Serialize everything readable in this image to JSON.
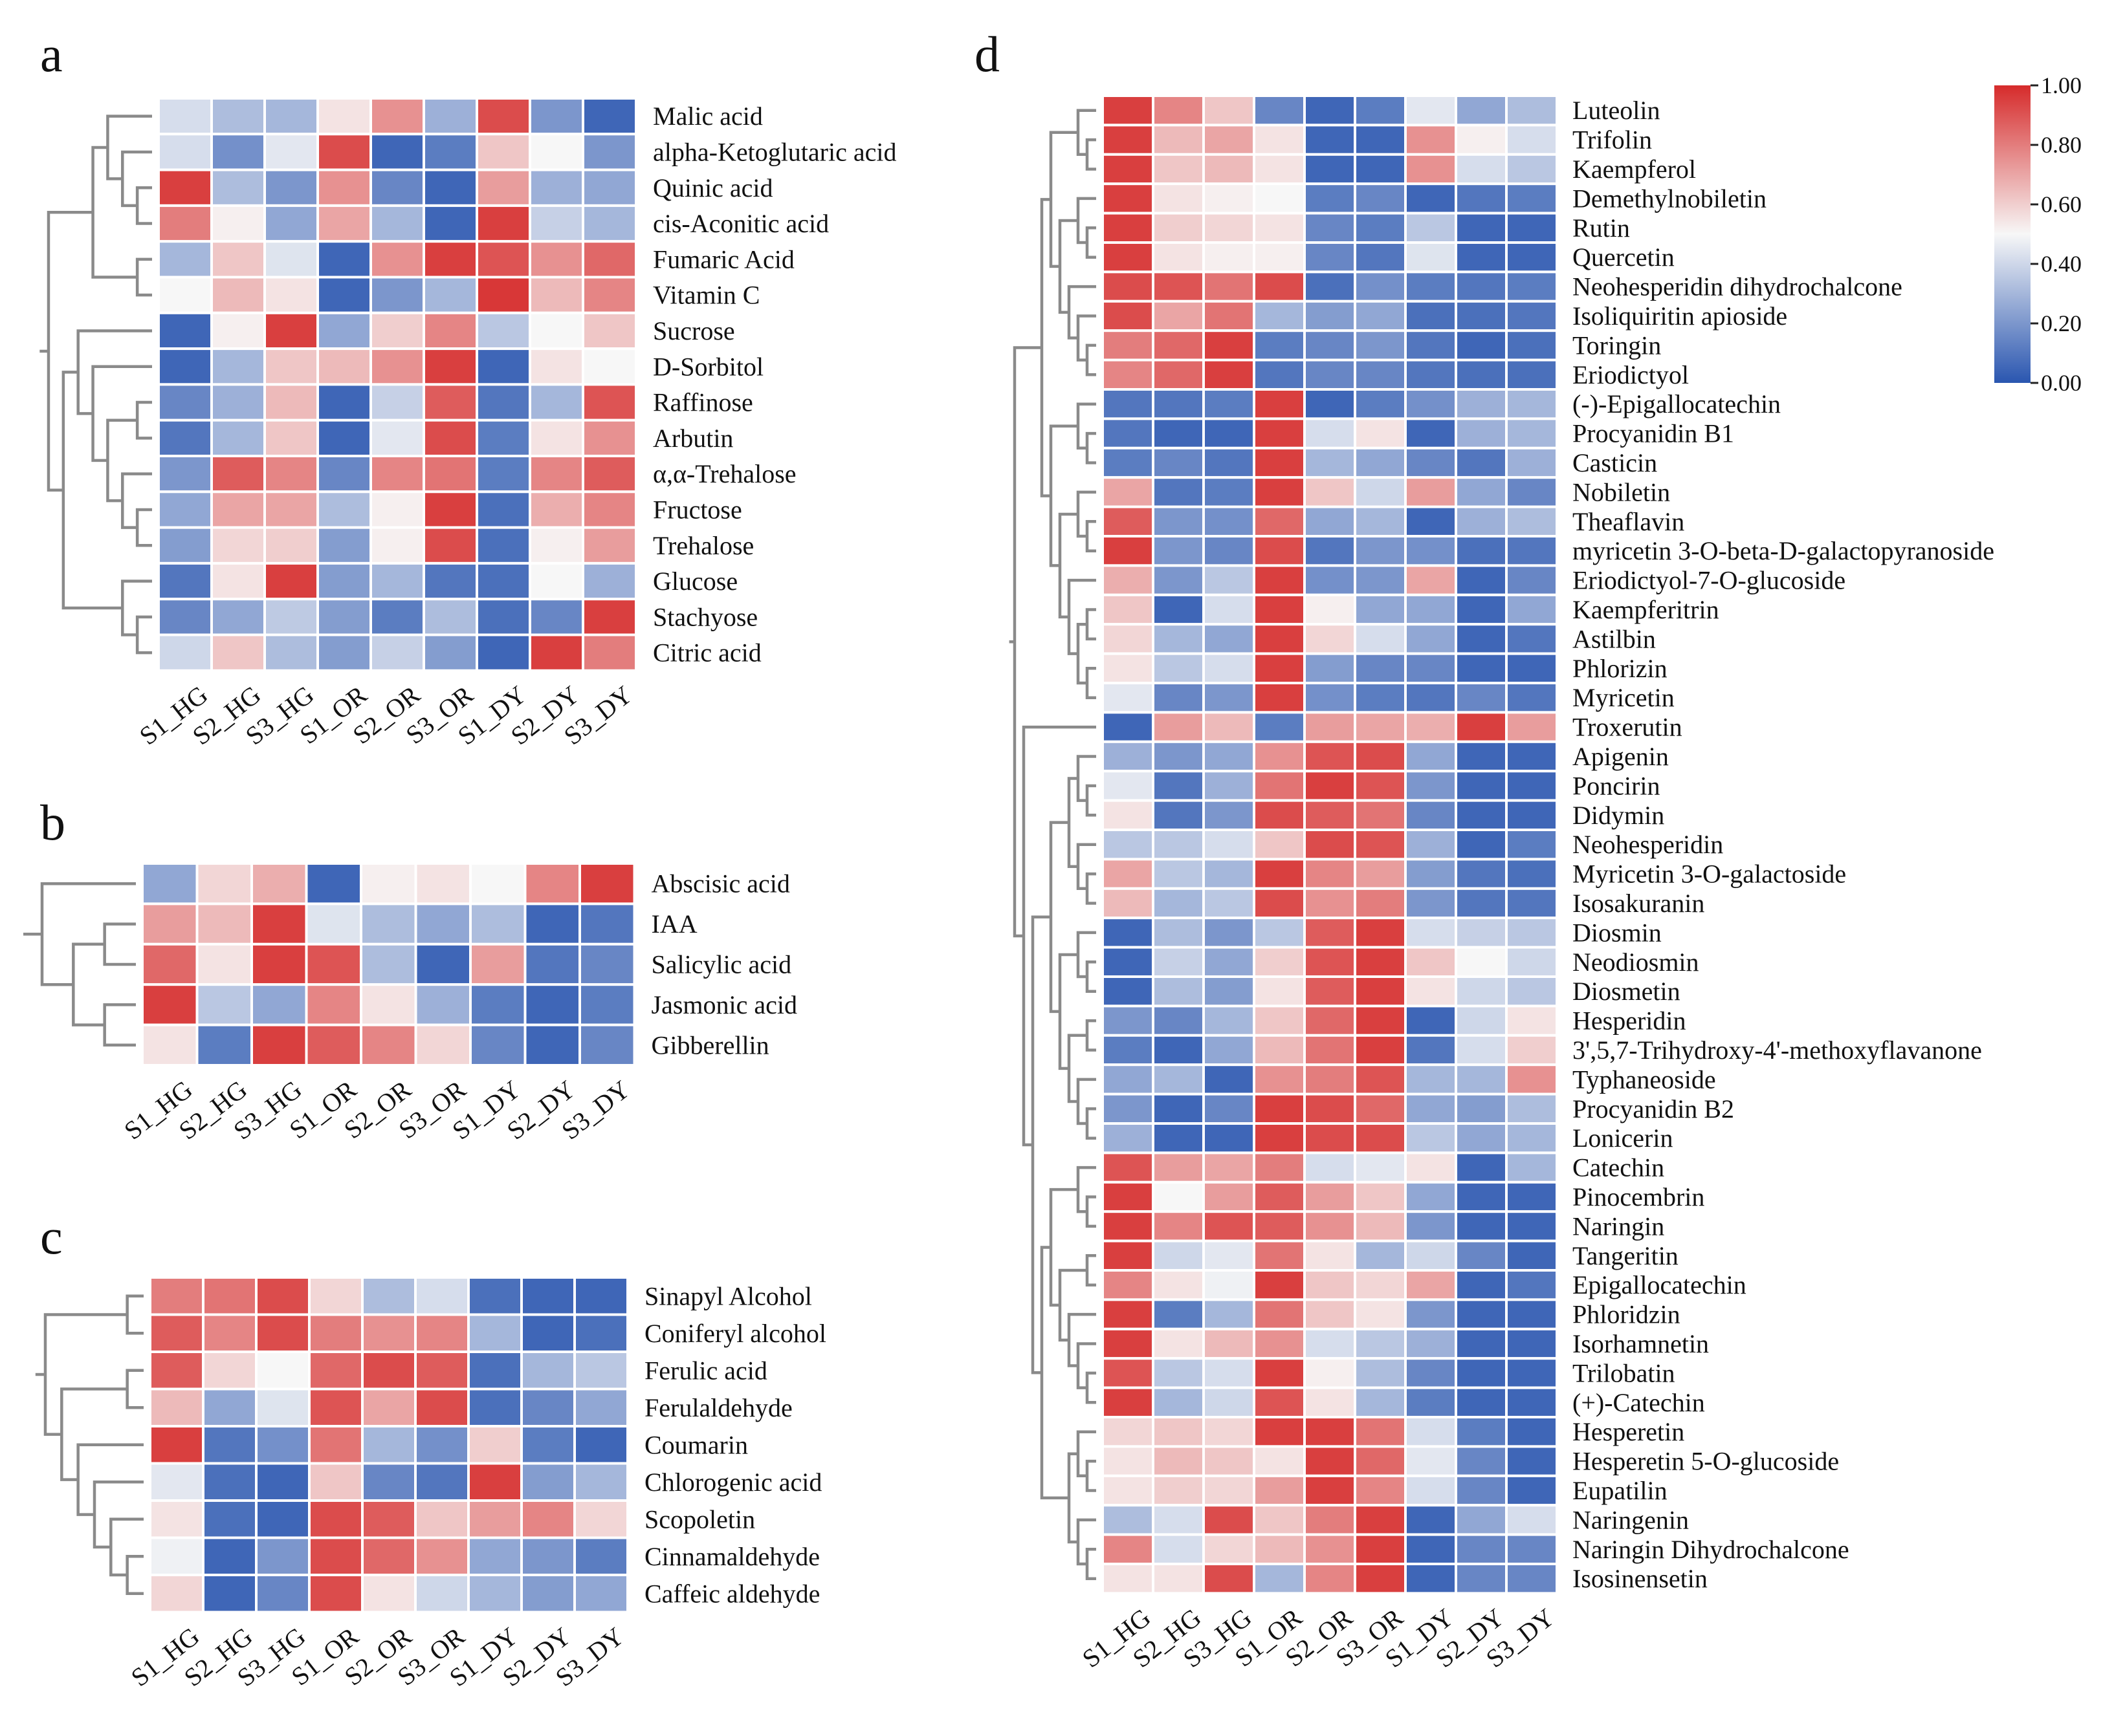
{
  "figure": {
    "panels": [
      "a",
      "b",
      "c",
      "d"
    ]
  },
  "chart_data": [
    {
      "type": "heatmap",
      "panel": "a",
      "title": "",
      "x": [
        "S1_HG",
        "S2_HG",
        "S3_HG",
        "S1_OR",
        "S2_OR",
        "S3_OR",
        "S1_DY",
        "S2_DY",
        "S3_DY"
      ],
      "y": [
        "Malic acid",
        "alpha-Ketoglutaric acid",
        "Quinic acid",
        "cis-Aconitic acid",
        "Fumaric Acid",
        "Vitamin C",
        "Sucrose",
        "D-Sorbitol",
        "Raffinose",
        "Arbutin",
        "α,α-Trehalose",
        "Fructose",
        "Trehalose",
        "Glucose",
        "Stachyose",
        "Citric acid"
      ],
      "values": [
        [
          0.42,
          0.32,
          0.3,
          0.55,
          0.75,
          0.28,
          0.92,
          0.2,
          0.05
        ],
        [
          0.42,
          0.18,
          0.45,
          0.92,
          0.05,
          0.12,
          0.62,
          0.5,
          0.2
        ],
        [
          0.95,
          0.32,
          0.2,
          0.75,
          0.15,
          0.05,
          0.72,
          0.28,
          0.25
        ],
        [
          0.8,
          0.52,
          0.25,
          0.7,
          0.3,
          0.05,
          0.95,
          0.38,
          0.3
        ],
        [
          0.3,
          0.62,
          0.44,
          0.05,
          0.75,
          0.95,
          0.9,
          0.75,
          0.85
        ],
        [
          0.5,
          0.65,
          0.55,
          0.05,
          0.2,
          0.3,
          0.97,
          0.65,
          0.78
        ],
        [
          0.05,
          0.52,
          0.95,
          0.25,
          0.6,
          0.78,
          0.35,
          0.5,
          0.62
        ],
        [
          0.05,
          0.3,
          0.62,
          0.65,
          0.75,
          0.95,
          0.05,
          0.55,
          0.5
        ],
        [
          0.15,
          0.28,
          0.65,
          0.05,
          0.38,
          0.88,
          0.1,
          0.3,
          0.9
        ],
        [
          0.1,
          0.3,
          0.62,
          0.05,
          0.45,
          0.92,
          0.12,
          0.55,
          0.75
        ],
        [
          0.2,
          0.88,
          0.78,
          0.15,
          0.78,
          0.82,
          0.12,
          0.78,
          0.88
        ],
        [
          0.25,
          0.7,
          0.7,
          0.32,
          0.52,
          0.95,
          0.08,
          0.68,
          0.78
        ],
        [
          0.22,
          0.58,
          0.6,
          0.22,
          0.52,
          0.92,
          0.08,
          0.52,
          0.72
        ],
        [
          0.1,
          0.55,
          0.95,
          0.22,
          0.3,
          0.1,
          0.08,
          0.5,
          0.28
        ],
        [
          0.15,
          0.25,
          0.36,
          0.22,
          0.12,
          0.32,
          0.08,
          0.15,
          0.95
        ],
        [
          0.4,
          0.62,
          0.32,
          0.22,
          0.38,
          0.22,
          0.05,
          0.95,
          0.8
        ]
      ],
      "color_range": [
        0,
        1
      ]
    },
    {
      "type": "heatmap",
      "panel": "b",
      "title": "",
      "x": [
        "S1_HG",
        "S2_HG",
        "S3_HG",
        "S1_OR",
        "S2_OR",
        "S3_OR",
        "S1_DY",
        "S2_DY",
        "S3_DY"
      ],
      "y": [
        "Abscisic acid",
        "IAA",
        "Salicylic acid",
        "Jasmonic acid",
        "Gibberellin"
      ],
      "values": [
        [
          0.25,
          0.58,
          0.68,
          0.05,
          0.52,
          0.55,
          0.5,
          0.78,
          0.95
        ],
        [
          0.72,
          0.65,
          0.95,
          0.44,
          0.32,
          0.25,
          0.32,
          0.05,
          0.1
        ],
        [
          0.85,
          0.55,
          0.95,
          0.9,
          0.32,
          0.05,
          0.72,
          0.1,
          0.15
        ],
        [
          0.95,
          0.35,
          0.25,
          0.78,
          0.55,
          0.28,
          0.12,
          0.05,
          0.12
        ],
        [
          0.55,
          0.12,
          0.95,
          0.88,
          0.78,
          0.58,
          0.15,
          0.05,
          0.15
        ]
      ],
      "color_range": [
        0,
        1
      ]
    },
    {
      "type": "heatmap",
      "panel": "c",
      "title": "",
      "x": [
        "S1_HG",
        "S2_HG",
        "S3_HG",
        "S1_OR",
        "S2_OR",
        "S3_OR",
        "S1_DY",
        "S2_DY",
        "S3_DY"
      ],
      "y": [
        "Sinapyl Alcohol",
        "Coniferyl alcohol",
        "Ferulic acid",
        "Ferulaldehyde",
        "Coumarin",
        "Chlorogenic acid",
        "Scopoletin",
        "Cinnamaldehyde",
        "Caffeic aldehyde"
      ],
      "values": [
        [
          0.8,
          0.82,
          0.92,
          0.58,
          0.32,
          0.42,
          0.08,
          0.05,
          0.05
        ],
        [
          0.88,
          0.78,
          0.92,
          0.8,
          0.75,
          0.78,
          0.3,
          0.05,
          0.08
        ],
        [
          0.88,
          0.58,
          0.5,
          0.85,
          0.92,
          0.88,
          0.08,
          0.3,
          0.35
        ],
        [
          0.65,
          0.25,
          0.44,
          0.9,
          0.7,
          0.92,
          0.08,
          0.15,
          0.25
        ],
        [
          0.95,
          0.1,
          0.18,
          0.82,
          0.3,
          0.18,
          0.6,
          0.12,
          0.05
        ],
        [
          0.45,
          0.08,
          0.05,
          0.62,
          0.15,
          0.1,
          0.95,
          0.22,
          0.3
        ],
        [
          0.55,
          0.08,
          0.05,
          0.92,
          0.88,
          0.62,
          0.72,
          0.78,
          0.58
        ],
        [
          0.48,
          0.05,
          0.2,
          0.92,
          0.85,
          0.75,
          0.25,
          0.2,
          0.12
        ],
        [
          0.58,
          0.05,
          0.15,
          0.92,
          0.55,
          0.4,
          0.3,
          0.22,
          0.25
        ]
      ],
      "color_range": [
        0,
        1
      ]
    },
    {
      "type": "heatmap",
      "panel": "d",
      "title": "",
      "x": [
        "S1_HG",
        "S2_HG",
        "S3_HG",
        "S1_OR",
        "S2_OR",
        "S3_OR",
        "S1_DY",
        "S2_DY",
        "S3_DY"
      ],
      "y": [
        "Luteolin",
        "Trifolin",
        "Kaempferol",
        "Demethylnobiletin",
        "Rutin",
        "Quercetin",
        "Neohesperidin dihydrochalcone",
        "Isoliquiritin apioside",
        "Toringin",
        "Eriodictyol",
        "(-)-Epigallocatechin",
        "Procyanidin B1",
        "Casticin",
        "Nobiletin",
        "Theaflavin",
        "myricetin 3-O-beta-D-galactopyranoside",
        "Eriodictyol-7-O-glucoside",
        "Kaempferitrin",
        "Astilbin",
        "Phlorizin",
        "Myricetin",
        "Troxerutin",
        "Apigenin",
        "Poncirin",
        "Didymin",
        "Neohesperidin",
        "Myricetin 3-O-galactoside",
        "Isosakuranin",
        "Diosmin",
        "Neodiosmin",
        "Diosmetin",
        "Hesperidin",
        "3',5,7-Trihydroxy-4'-methoxyflavanone",
        "Typhaneoside",
        "Procyanidin B2",
        "Lonicerin",
        "Catechin",
        "Pinocembrin",
        "Naringin",
        "Tangeritin",
        "Epigallocatechin",
        "Phloridzin",
        "Isorhamnetin",
        "Trilobatin",
        "(+)-Catechin",
        "Hesperetin",
        "Hesperetin 5-O-glucoside",
        "Eupatilin",
        "Naringenin",
        "Naringin Dihydrochalcone",
        "Isosinensetin"
      ],
      "values": [
        [
          0.95,
          0.78,
          0.62,
          0.15,
          0.05,
          0.12,
          0.45,
          0.25,
          0.32
        ],
        [
          0.95,
          0.65,
          0.7,
          0.55,
          0.05,
          0.05,
          0.75,
          0.52,
          0.42
        ],
        [
          0.95,
          0.62,
          0.65,
          0.55,
          0.05,
          0.05,
          0.75,
          0.42,
          0.35
        ],
        [
          0.95,
          0.55,
          0.52,
          0.5,
          0.12,
          0.15,
          0.05,
          0.1,
          0.12
        ],
        [
          0.95,
          0.6,
          0.58,
          0.55,
          0.15,
          0.12,
          0.35,
          0.05,
          0.05
        ],
        [
          0.95,
          0.55,
          0.52,
          0.52,
          0.15,
          0.1,
          0.44,
          0.05,
          0.05
        ],
        [
          0.92,
          0.9,
          0.82,
          0.92,
          0.08,
          0.18,
          0.12,
          0.1,
          0.12
        ],
        [
          0.92,
          0.7,
          0.82,
          0.3,
          0.22,
          0.25,
          0.08,
          0.08,
          0.1
        ],
        [
          0.8,
          0.85,
          0.95,
          0.12,
          0.15,
          0.2,
          0.1,
          0.05,
          0.08
        ],
        [
          0.78,
          0.85,
          0.95,
          0.1,
          0.15,
          0.15,
          0.1,
          0.08,
          0.08
        ],
        [
          0.1,
          0.1,
          0.12,
          0.95,
          0.05,
          0.12,
          0.18,
          0.28,
          0.3
        ],
        [
          0.1,
          0.05,
          0.05,
          0.95,
          0.42,
          0.55,
          0.05,
          0.28,
          0.3
        ],
        [
          0.12,
          0.15,
          0.1,
          0.95,
          0.3,
          0.25,
          0.15,
          0.1,
          0.28
        ],
        [
          0.7,
          0.1,
          0.12,
          0.95,
          0.62,
          0.4,
          0.72,
          0.25,
          0.15
        ],
        [
          0.88,
          0.2,
          0.18,
          0.85,
          0.25,
          0.3,
          0.05,
          0.28,
          0.32
        ],
        [
          0.95,
          0.2,
          0.15,
          0.92,
          0.1,
          0.2,
          0.18,
          0.08,
          0.1
        ],
        [
          0.68,
          0.2,
          0.35,
          0.95,
          0.18,
          0.2,
          0.7,
          0.05,
          0.15
        ],
        [
          0.62,
          0.05,
          0.42,
          0.95,
          0.52,
          0.25,
          0.25,
          0.05,
          0.25
        ],
        [
          0.58,
          0.3,
          0.25,
          0.95,
          0.58,
          0.42,
          0.25,
          0.05,
          0.1
        ],
        [
          0.55,
          0.35,
          0.42,
          0.95,
          0.22,
          0.15,
          0.15,
          0.05,
          0.05
        ],
        [
          0.45,
          0.15,
          0.2,
          0.95,
          0.18,
          0.12,
          0.1,
          0.15,
          0.1
        ],
        [
          0.05,
          0.72,
          0.65,
          0.12,
          0.72,
          0.7,
          0.68,
          0.95,
          0.72
        ],
        [
          0.28,
          0.2,
          0.25,
          0.75,
          0.9,
          0.92,
          0.25,
          0.05,
          0.05
        ],
        [
          0.45,
          0.1,
          0.28,
          0.82,
          0.95,
          0.9,
          0.2,
          0.05,
          0.05
        ],
        [
          0.55,
          0.1,
          0.2,
          0.92,
          0.88,
          0.82,
          0.15,
          0.05,
          0.05
        ],
        [
          0.35,
          0.35,
          0.42,
          0.62,
          0.92,
          0.9,
          0.28,
          0.05,
          0.12
        ],
        [
          0.7,
          0.35,
          0.3,
          0.95,
          0.78,
          0.72,
          0.22,
          0.1,
          0.08
        ],
        [
          0.65,
          0.3,
          0.35,
          0.92,
          0.75,
          0.8,
          0.2,
          0.1,
          0.1
        ],
        [
          0.05,
          0.32,
          0.2,
          0.35,
          0.88,
          0.95,
          0.42,
          0.38,
          0.35
        ],
        [
          0.05,
          0.38,
          0.25,
          0.6,
          0.9,
          0.95,
          0.62,
          0.5,
          0.4
        ],
        [
          0.05,
          0.32,
          0.22,
          0.55,
          0.88,
          0.95,
          0.55,
          0.4,
          0.35
        ],
        [
          0.2,
          0.15,
          0.3,
          0.62,
          0.85,
          0.95,
          0.05,
          0.4,
          0.55
        ],
        [
          0.12,
          0.05,
          0.25,
          0.65,
          0.82,
          0.95,
          0.1,
          0.42,
          0.6
        ],
        [
          0.25,
          0.3,
          0.05,
          0.75,
          0.8,
          0.9,
          0.3,
          0.3,
          0.75
        ],
        [
          0.2,
          0.05,
          0.15,
          0.95,
          0.92,
          0.85,
          0.25,
          0.22,
          0.32
        ],
        [
          0.28,
          0.05,
          0.05,
          0.95,
          0.92,
          0.92,
          0.35,
          0.25,
          0.3
        ],
        [
          0.9,
          0.72,
          0.7,
          0.8,
          0.42,
          0.45,
          0.55,
          0.05,
          0.3
        ],
        [
          0.95,
          0.5,
          0.72,
          0.88,
          0.72,
          0.62,
          0.25,
          0.05,
          0.05
        ],
        [
          0.95,
          0.78,
          0.9,
          0.88,
          0.75,
          0.65,
          0.2,
          0.05,
          0.05
        ],
        [
          0.95,
          0.4,
          0.45,
          0.82,
          0.55,
          0.3,
          0.4,
          0.15,
          0.05
        ],
        [
          0.78,
          0.55,
          0.48,
          0.95,
          0.62,
          0.58,
          0.7,
          0.05,
          0.1
        ],
        [
          0.95,
          0.12,
          0.3,
          0.82,
          0.62,
          0.55,
          0.2,
          0.05,
          0.05
        ],
        [
          0.95,
          0.55,
          0.65,
          0.75,
          0.42,
          0.35,
          0.28,
          0.05,
          0.05
        ],
        [
          0.9,
          0.35,
          0.42,
          0.95,
          0.52,
          0.32,
          0.15,
          0.05,
          0.05
        ],
        [
          0.95,
          0.3,
          0.4,
          0.9,
          0.55,
          0.3,
          0.12,
          0.05,
          0.05
        ],
        [
          0.58,
          0.62,
          0.58,
          0.95,
          0.95,
          0.82,
          0.42,
          0.12,
          0.05
        ],
        [
          0.55,
          0.65,
          0.62,
          0.55,
          0.95,
          0.85,
          0.45,
          0.15,
          0.05
        ],
        [
          0.55,
          0.6,
          0.58,
          0.72,
          0.95,
          0.78,
          0.42,
          0.15,
          0.05
        ],
        [
          0.32,
          0.42,
          0.92,
          0.62,
          0.8,
          0.95,
          0.05,
          0.25,
          0.42
        ],
        [
          0.78,
          0.42,
          0.58,
          0.65,
          0.75,
          0.95,
          0.05,
          0.15,
          0.15
        ],
        [
          0.55,
          0.55,
          0.92,
          0.3,
          0.78,
          0.95,
          0.05,
          0.15,
          0.15
        ]
      ],
      "color_range": [
        0,
        1
      ]
    }
  ],
  "legend": {
    "ticks": [
      "1.00",
      "0.80",
      "0.60",
      "0.40",
      "0.20",
      "0.00"
    ],
    "colors": {
      "high": "#d62b2b",
      "mid": "#f7f7f7",
      "low": "#2a56b0"
    }
  }
}
